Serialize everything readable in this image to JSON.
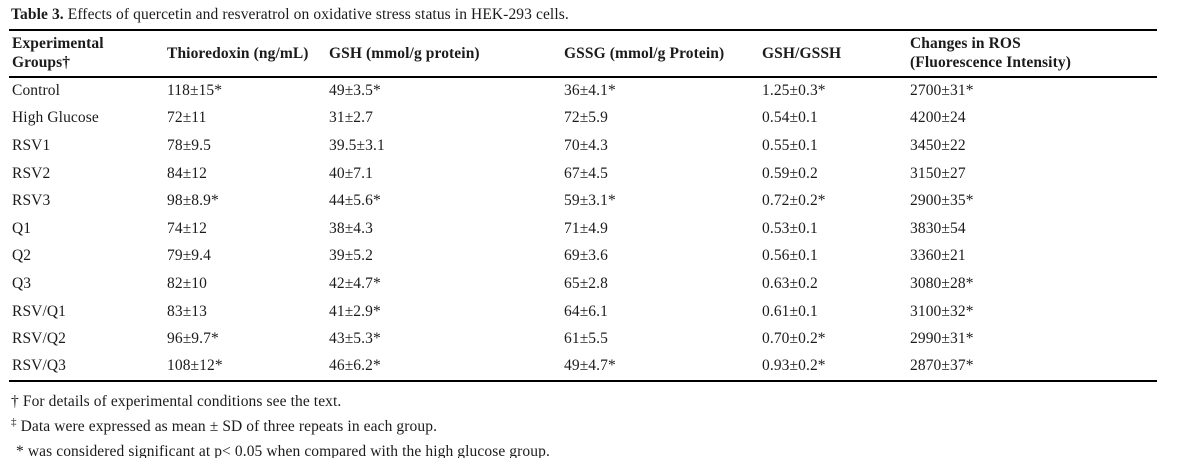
{
  "title": {
    "label": "Table 3.",
    "caption": " Effects of quercetin and resveratrol on oxidative stress status in HEK-293 cells."
  },
  "table": {
    "columns": [
      "Experimental\nGroups†",
      "Thioredoxin (ng/mL)",
      "GSH (mmol/g protein)",
      "GSSG (mmol/g Protein)",
      "GSH/GSSH",
      "Changes in ROS\n(Fluorescence Intensity)"
    ],
    "rows": [
      [
        "Control",
        "118±15*",
        "49±3.5*",
        "36±4.1*",
        "1.25±0.3*",
        "2700±31*"
      ],
      [
        "High Glucose",
        "72±11",
        "31±2.7",
        "72±5.9",
        "0.54±0.1",
        "4200±24"
      ],
      [
        "RSV1",
        "78±9.5",
        "39.5±3.1",
        "70±4.3",
        "0.55±0.1",
        "3450±22"
      ],
      [
        "RSV2",
        "84±12",
        "40±7.1",
        "67±4.5",
        "0.59±0.2",
        "3150±27"
      ],
      [
        "RSV3",
        "98±8.9*",
        "44±5.6*",
        "59±3.1*",
        "0.72±0.2*",
        "2900±35*"
      ],
      [
        "Q1",
        "74±12",
        "38±4.3",
        "71±4.9",
        "0.53±0.1",
        "3830±54"
      ],
      [
        "Q2",
        "79±9.4",
        "39±5.2",
        "69±3.6",
        "0.56±0.1",
        "3360±21"
      ],
      [
        "Q3",
        "82±10",
        "42±4.7*",
        "65±2.8",
        "0.63±0.2",
        "3080±28*"
      ],
      [
        "RSV/Q1",
        "83±13",
        "41±2.9*",
        "64±6.1",
        "0.61±0.1",
        "3100±32*"
      ],
      [
        "RSV/Q2",
        "96±9.7*",
        "43±5.3*",
        "61±5.5",
        "0.70±0.2*",
        "2990±31*"
      ],
      [
        "RSV/Q3",
        "108±12*",
        "46±6.2*",
        "49±4.7*",
        "0.93±0.2*",
        "2870±37*"
      ]
    ]
  },
  "footnotes": [
    {
      "marker": "†",
      "text": "For details of experimental conditions see the text."
    },
    {
      "marker": "‡",
      "text": "Data were expressed as mean ± SD of three repeats in each group."
    },
    {
      "marker": "*",
      "text": "was considered significant at p< 0.05 when compared with the high glucose group."
    }
  ]
}
